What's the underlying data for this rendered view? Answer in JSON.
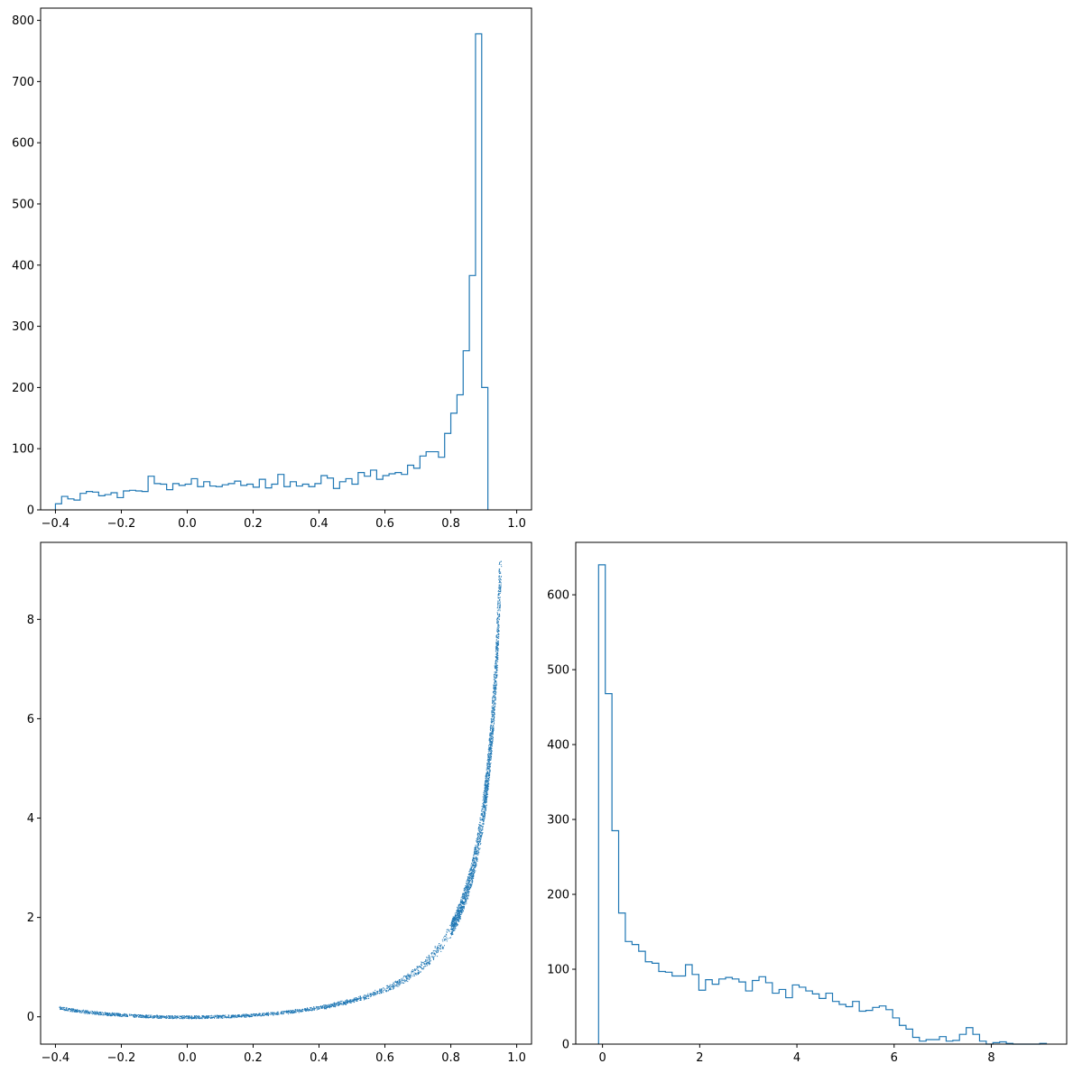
{
  "chart_data": [
    {
      "type": "histogram",
      "panel": "top-left",
      "xlim": [
        -0.445,
        1.045
      ],
      "ylim": [
        0,
        820
      ],
      "x_ticks": [
        -0.4,
        -0.2,
        0.0,
        0.2,
        0.4,
        0.6,
        0.8,
        1.0
      ],
      "x_tick_labels": [
        "−0.4",
        "−0.2",
        "0.0",
        "0.2",
        "0.4",
        "0.6",
        "0.8",
        "1.0"
      ],
      "y_ticks": [
        0,
        100,
        200,
        300,
        400,
        500,
        600,
        700,
        800
      ],
      "y_tick_labels": [
        "0",
        "100",
        "200",
        "300",
        "400",
        "500",
        "600",
        "700",
        "800"
      ],
      "bin_start": -0.4,
      "bin_width": 0.01875,
      "counts": [
        10,
        22,
        18,
        16,
        27,
        30,
        29,
        23,
        25,
        28,
        20,
        31,
        32,
        31,
        30,
        55,
        43,
        42,
        33,
        43,
        40,
        42,
        51,
        38,
        46,
        39,
        38,
        41,
        43,
        47,
        40,
        42,
        37,
        50,
        36,
        42,
        58,
        38,
        46,
        39,
        42,
        38,
        43,
        56,
        52,
        35,
        46,
        51,
        42,
        61,
        55,
        65,
        50,
        56,
        59,
        61,
        58,
        73,
        68,
        88,
        95,
        95,
        86,
        125,
        158,
        188,
        260,
        383,
        778,
        200
      ],
      "color": "#1f77b4",
      "grid": false
    },
    {
      "type": "scatter",
      "panel": "bottom-left",
      "xlim": [
        -0.445,
        1.045
      ],
      "ylim": [
        -0.55,
        9.55
      ],
      "x_ticks": [
        -0.4,
        -0.2,
        0.0,
        0.2,
        0.4,
        0.6,
        0.8,
        1.0
      ],
      "x_tick_labels": [
        "−0.4",
        "−0.2",
        "0.0",
        "0.2",
        "0.4",
        "0.6",
        "0.8",
        "1.0"
      ],
      "y_ticks": [
        0,
        2,
        4,
        6,
        8
      ],
      "y_tick_labels": [
        "0",
        "2",
        "4",
        "6",
        "8"
      ],
      "relation": "y ≈ x²/(1 − x²)",
      "n_points": 4500,
      "x_range": [
        -0.39,
        0.98
      ],
      "color": "#1f77b4",
      "grid": false
    },
    {
      "type": "histogram",
      "panel": "bottom-right",
      "xlim": [
        -0.55,
        9.55
      ],
      "ylim": [
        0,
        670
      ],
      "x_ticks": [
        0,
        2,
        4,
        6,
        8
      ],
      "x_tick_labels": [
        "0",
        "2",
        "4",
        "6",
        "8"
      ],
      "y_ticks": [
        0,
        100,
        200,
        300,
        400,
        500,
        600
      ],
      "y_tick_labels": [
        "0",
        "100",
        "200",
        "300",
        "400",
        "500",
        "600"
      ],
      "bin_start": -0.08,
      "bin_width": 0.1375,
      "counts": [
        640,
        468,
        285,
        175,
        137,
        133,
        124,
        110,
        108,
        97,
        96,
        91,
        91,
        106,
        93,
        72,
        86,
        80,
        87,
        89,
        87,
        83,
        71,
        85,
        90,
        82,
        68,
        73,
        62,
        79,
        76,
        71,
        67,
        61,
        68,
        57,
        53,
        50,
        57,
        44,
        45,
        49,
        51,
        46,
        35,
        25,
        20,
        9,
        4,
        6,
        6,
        10,
        4,
        5,
        13,
        22,
        13,
        4,
        0,
        2,
        3,
        1,
        0,
        0,
        0,
        0,
        1
      ],
      "color": "#1f77b4",
      "grid": false
    }
  ]
}
